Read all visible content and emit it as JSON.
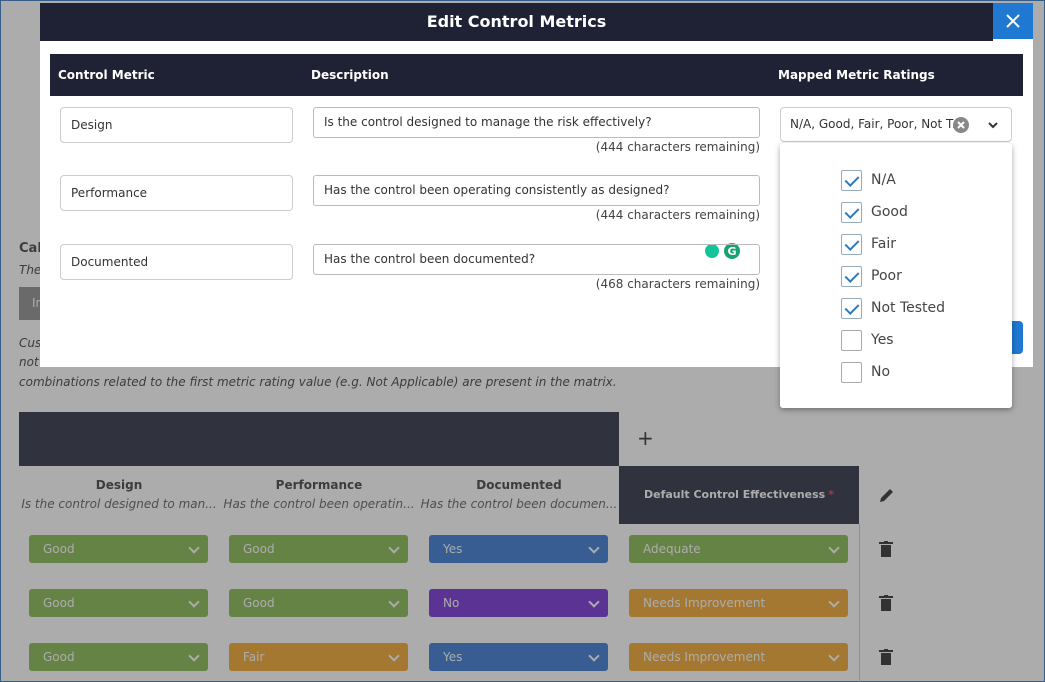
{
  "modal": {
    "title": "Edit Control Metrics",
    "columns": [
      "Control Metric",
      "Description",
      "Mapped Metric Ratings"
    ],
    "rows": [
      {
        "metric": "Design",
        "description": "Is the control designed to manage the risk effectively?",
        "remaining": "(444 characters remaining)"
      },
      {
        "metric": "Performance",
        "description": "Has the control been operating consistently as designed?",
        "remaining": "(444 characters remaining)"
      },
      {
        "metric": "Documented",
        "description": "Has the control been documented?",
        "remaining": "(468 characters remaining)"
      }
    ],
    "ratings_selected": "N/A, Good, Fair, Poor, Not T...",
    "options": [
      {
        "label": "N/A",
        "checked": true
      },
      {
        "label": "Good",
        "checked": true
      },
      {
        "label": "Fair",
        "checked": true
      },
      {
        "label": "Poor",
        "checked": true
      },
      {
        "label": "Not Tested",
        "checked": true
      },
      {
        "label": "Yes",
        "checked": false
      },
      {
        "label": "No",
        "checked": false
      }
    ]
  },
  "background": {
    "fragments": [
      "Cal",
      "The",
      "In",
      "Cus",
      "not"
    ],
    "note": "combinations related to the first metric rating value (e.g. Not Applicable) are present in the matrix.",
    "add": "+",
    "matrix": {
      "columns": [
        {
          "name": "Design",
          "description": "Is the control designed to man..."
        },
        {
          "name": "Performance",
          "description": "Has the control been operatin..."
        },
        {
          "name": "Documented",
          "description": "Has the control been documen..."
        }
      ],
      "default_column": "Default Control Effectiveness",
      "required": "*",
      "rows": [
        [
          {
            "value": "Good",
            "color": "#7db443"
          },
          {
            "value": "Good",
            "color": "#7db443"
          },
          {
            "value": "Yes",
            "color": "#2a6fd0"
          },
          {
            "value": "Adequate",
            "color": "#7db443"
          }
        ],
        [
          {
            "value": "Good",
            "color": "#7db443"
          },
          {
            "value": "Good",
            "color": "#7db443"
          },
          {
            "value": "No",
            "color": "#6a23d6"
          },
          {
            "value": "Needs Improvement",
            "color": "#f0a020"
          }
        ],
        [
          {
            "value": "Good",
            "color": "#7db443"
          },
          {
            "value": "Fair",
            "color": "#f0a020"
          },
          {
            "value": "Yes",
            "color": "#2a6fd0"
          },
          {
            "value": "Needs Improvement",
            "color": "#f0a020"
          }
        ]
      ]
    }
  }
}
